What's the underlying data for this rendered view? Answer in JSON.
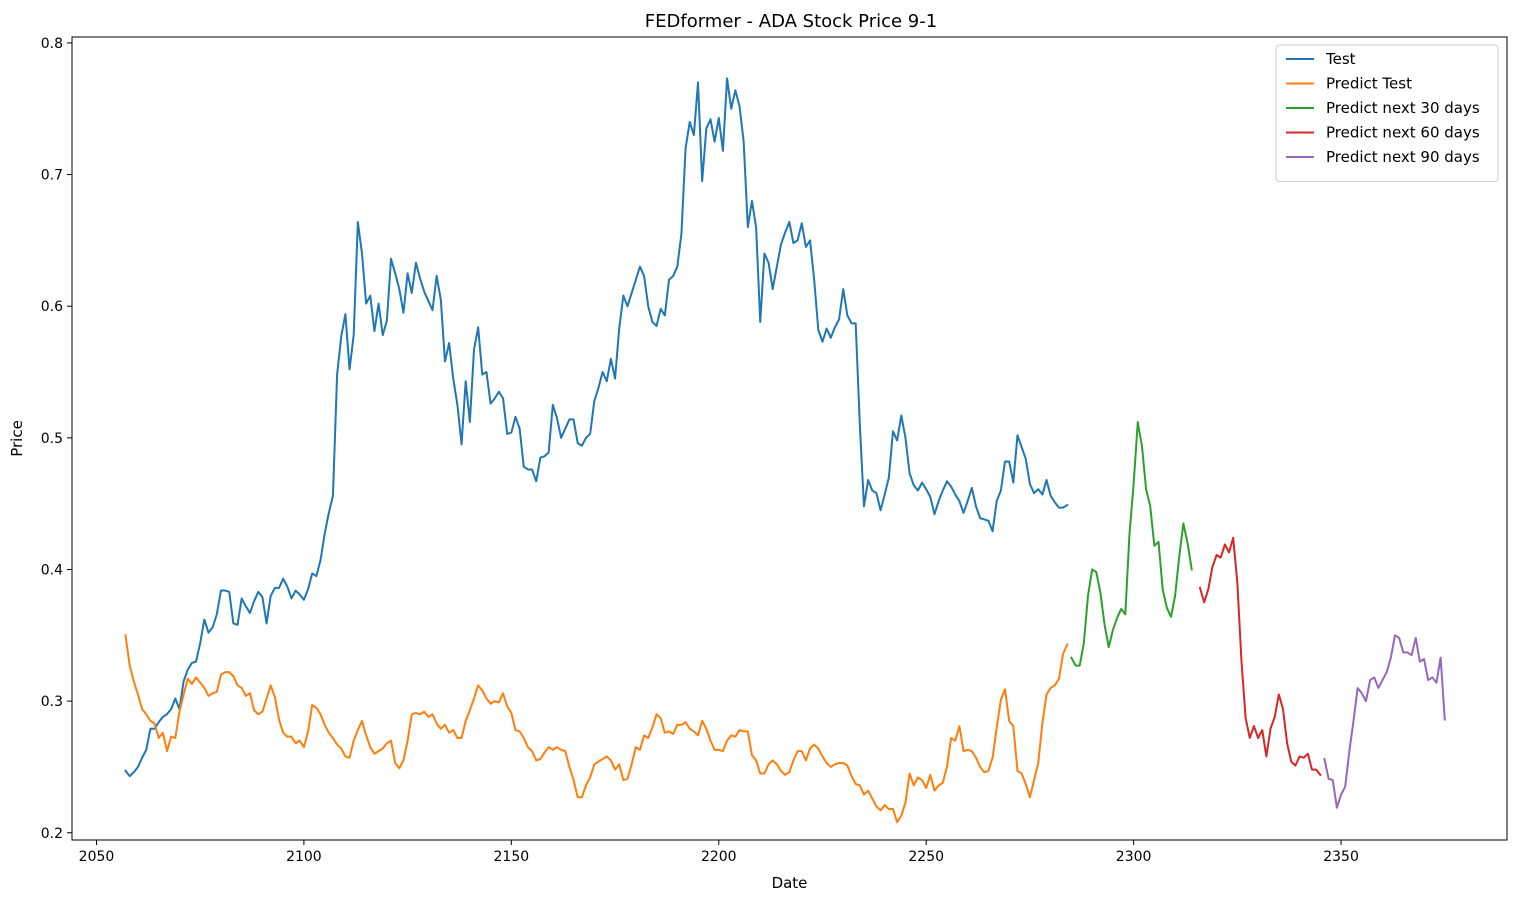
{
  "chart_data": {
    "type": "line",
    "title": "FEDformer - ADA Stock Price 9-1",
    "xlabel": "Date",
    "ylabel": "Price",
    "xlim": [
      2044.1,
      2390
    ],
    "ylim": [
      0.1945,
      0.8045
    ],
    "xticks": [
      2050,
      2100,
      2150,
      2200,
      2250,
      2300,
      2350
    ],
    "yticks": [
      0.2,
      0.3,
      0.4,
      0.5,
      0.6,
      0.7,
      0.8
    ],
    "xtick_labels": [
      "2050",
      "2100",
      "2150",
      "2200",
      "2250",
      "2300",
      "2350"
    ],
    "ytick_labels": [
      "0.2",
      "0.3",
      "0.4",
      "0.5",
      "0.6",
      "0.7",
      "0.8"
    ],
    "grid": false,
    "legend_position": "top-right",
    "series": [
      {
        "name": "Test",
        "color": "#1f77b4",
        "x_start": 2057,
        "values": [
          0.247,
          0.243,
          0.246,
          0.25,
          0.257,
          0.263,
          0.279,
          0.279,
          0.284,
          0.288,
          0.29,
          0.294,
          0.302,
          0.294,
          0.315,
          0.324,
          0.329,
          0.33,
          0.344,
          0.362,
          0.352,
          0.356,
          0.366,
          0.384,
          0.384,
          0.383,
          0.359,
          0.358,
          0.378,
          0.372,
          0.367,
          0.376,
          0.383,
          0.379,
          0.359,
          0.38,
          0.386,
          0.386,
          0.393,
          0.387,
          0.378,
          0.384,
          0.381,
          0.377,
          0.385,
          0.397,
          0.395,
          0.407,
          0.427,
          0.443,
          0.456,
          0.548,
          0.577,
          0.594,
          0.552,
          0.578,
          0.664,
          0.64,
          0.602,
          0.608,
          0.581,
          0.602,
          0.578,
          0.589,
          0.636,
          0.625,
          0.613,
          0.595,
          0.625,
          0.61,
          0.633,
          0.621,
          0.611,
          0.604,
          0.597,
          0.623,
          0.605,
          0.558,
          0.572,
          0.545,
          0.525,
          0.495,
          0.543,
          0.512,
          0.567,
          0.584,
          0.548,
          0.55,
          0.526,
          0.53,
          0.535,
          0.53,
          0.503,
          0.504,
          0.516,
          0.507,
          0.478,
          0.476,
          0.476,
          0.467,
          0.485,
          0.486,
          0.489,
          0.525,
          0.515,
          0.5,
          0.507,
          0.514,
          0.514,
          0.496,
          0.494,
          0.5,
          0.503,
          0.528,
          0.538,
          0.55,
          0.543,
          0.56,
          0.545,
          0.583,
          0.608,
          0.6,
          0.61,
          0.62,
          0.63,
          0.623,
          0.6,
          0.588,
          0.585,
          0.598,
          0.593,
          0.62,
          0.623,
          0.63,
          0.655,
          0.72,
          0.74,
          0.73,
          0.77,
          0.695,
          0.735,
          0.742,
          0.725,
          0.743,
          0.718,
          0.773,
          0.75,
          0.764,
          0.752,
          0.725,
          0.66,
          0.68,
          0.66,
          0.588,
          0.64,
          0.633,
          0.613,
          0.63,
          0.647,
          0.656,
          0.664,
          0.648,
          0.65,
          0.663,
          0.645,
          0.65,
          0.62,
          0.582,
          0.573,
          0.583,
          0.576,
          0.584,
          0.59,
          0.613,
          0.593,
          0.587,
          0.587,
          0.51,
          0.448,
          0.468,
          0.46,
          0.458,
          0.445,
          0.457,
          0.47,
          0.505,
          0.498,
          0.517,
          0.5,
          0.473,
          0.464,
          0.46,
          0.466,
          0.461,
          0.455,
          0.442,
          0.452,
          0.46,
          0.467,
          0.463,
          0.457,
          0.452,
          0.443,
          0.452,
          0.462,
          0.448,
          0.439,
          0.438,
          0.437,
          0.429,
          0.452,
          0.46,
          0.482,
          0.482,
          0.466,
          0.502,
          0.493,
          0.484,
          0.465,
          0.458,
          0.461,
          0.457,
          0.468,
          0.456,
          0.451,
          0.447,
          0.447,
          0.449
        ]
      },
      {
        "name": "Predict Test",
        "color": "#ff7f0e",
        "x_start": 2057,
        "values": [
          0.35,
          0.327,
          0.315,
          0.305,
          0.294,
          0.29,
          0.285,
          0.283,
          0.272,
          0.276,
          0.262,
          0.273,
          0.272,
          0.292,
          0.305,
          0.317,
          0.313,
          0.318,
          0.314,
          0.31,
          0.304,
          0.306,
          0.307,
          0.32,
          0.322,
          0.322,
          0.319,
          0.312,
          0.31,
          0.304,
          0.306,
          0.293,
          0.29,
          0.292,
          0.302,
          0.312,
          0.303,
          0.286,
          0.276,
          0.273,
          0.273,
          0.268,
          0.27,
          0.265,
          0.277,
          0.297,
          0.295,
          0.29,
          0.282,
          0.276,
          0.272,
          0.267,
          0.264,
          0.258,
          0.257,
          0.27,
          0.278,
          0.285,
          0.274,
          0.265,
          0.26,
          0.262,
          0.264,
          0.268,
          0.27,
          0.253,
          0.249,
          0.255,
          0.27,
          0.29,
          0.291,
          0.29,
          0.292,
          0.288,
          0.29,
          0.283,
          0.279,
          0.282,
          0.276,
          0.278,
          0.272,
          0.272,
          0.285,
          0.293,
          0.302,
          0.312,
          0.308,
          0.302,
          0.298,
          0.3,
          0.299,
          0.306,
          0.296,
          0.291,
          0.278,
          0.277,
          0.272,
          0.265,
          0.262,
          0.255,
          0.256,
          0.261,
          0.265,
          0.263,
          0.265,
          0.263,
          0.262,
          0.25,
          0.24,
          0.227,
          0.227,
          0.236,
          0.242,
          0.252,
          0.254,
          0.256,
          0.258,
          0.255,
          0.248,
          0.252,
          0.24,
          0.241,
          0.252,
          0.265,
          0.263,
          0.274,
          0.272,
          0.28,
          0.29,
          0.287,
          0.276,
          0.277,
          0.275,
          0.282,
          0.282,
          0.284,
          0.279,
          0.277,
          0.274,
          0.285,
          0.279,
          0.27,
          0.263,
          0.263,
          0.262,
          0.27,
          0.274,
          0.273,
          0.278,
          0.277,
          0.277,
          0.259,
          0.255,
          0.245,
          0.245,
          0.252,
          0.255,
          0.252,
          0.247,
          0.244,
          0.246,
          0.255,
          0.262,
          0.262,
          0.255,
          0.264,
          0.267,
          0.264,
          0.258,
          0.253,
          0.25,
          0.252,
          0.253,
          0.253,
          0.251,
          0.243,
          0.237,
          0.236,
          0.229,
          0.232,
          0.226,
          0.22,
          0.217,
          0.221,
          0.218,
          0.218,
          0.208,
          0.213,
          0.223,
          0.245,
          0.236,
          0.242,
          0.24,
          0.234,
          0.244,
          0.232,
          0.236,
          0.238,
          0.25,
          0.272,
          0.27,
          0.281,
          0.262,
          0.263,
          0.262,
          0.257,
          0.25,
          0.246,
          0.247,
          0.257,
          0.28,
          0.301,
          0.309,
          0.285,
          0.281,
          0.247,
          0.245,
          0.237,
          0.227,
          0.24,
          0.253,
          0.283,
          0.305,
          0.31,
          0.312,
          0.317,
          0.336,
          0.343
        ]
      },
      {
        "name": "Predict next 30 days",
        "color": "#2ca02c",
        "x_start": 2285,
        "values": [
          0.333,
          0.327,
          0.327,
          0.344,
          0.38,
          0.4,
          0.398,
          0.382,
          0.358,
          0.341,
          0.354,
          0.363,
          0.37,
          0.366,
          0.427,
          0.465,
          0.512,
          0.494,
          0.461,
          0.448,
          0.418,
          0.421,
          0.385,
          0.371,
          0.364,
          0.38,
          0.41,
          0.435,
          0.42,
          0.4
        ]
      },
      {
        "name": "Predict next 60 days",
        "color": "#d62728",
        "x_start": 2316,
        "values": [
          0.386,
          0.375,
          0.385,
          0.402,
          0.411,
          0.409,
          0.419,
          0.413,
          0.424,
          0.39,
          0.33,
          0.287,
          0.272,
          0.281,
          0.272,
          0.278,
          0.258,
          0.279,
          0.288,
          0.305,
          0.294,
          0.268,
          0.254,
          0.251,
          0.258,
          0.257,
          0.26,
          0.248,
          0.248,
          0.244
        ]
      },
      {
        "name": "Predict next 90 days",
        "color": "#9467bd",
        "x_start": 2346,
        "values": [
          0.256,
          0.241,
          0.24,
          0.219,
          0.229,
          0.235,
          0.262,
          0.285,
          0.31,
          0.306,
          0.3,
          0.316,
          0.318,
          0.31,
          0.316,
          0.322,
          0.333,
          0.35,
          0.348,
          0.337,
          0.337,
          0.335,
          0.348,
          0.33,
          0.332,
          0.316,
          0.318,
          0.314,
          0.333,
          0.286
        ]
      }
    ]
  }
}
